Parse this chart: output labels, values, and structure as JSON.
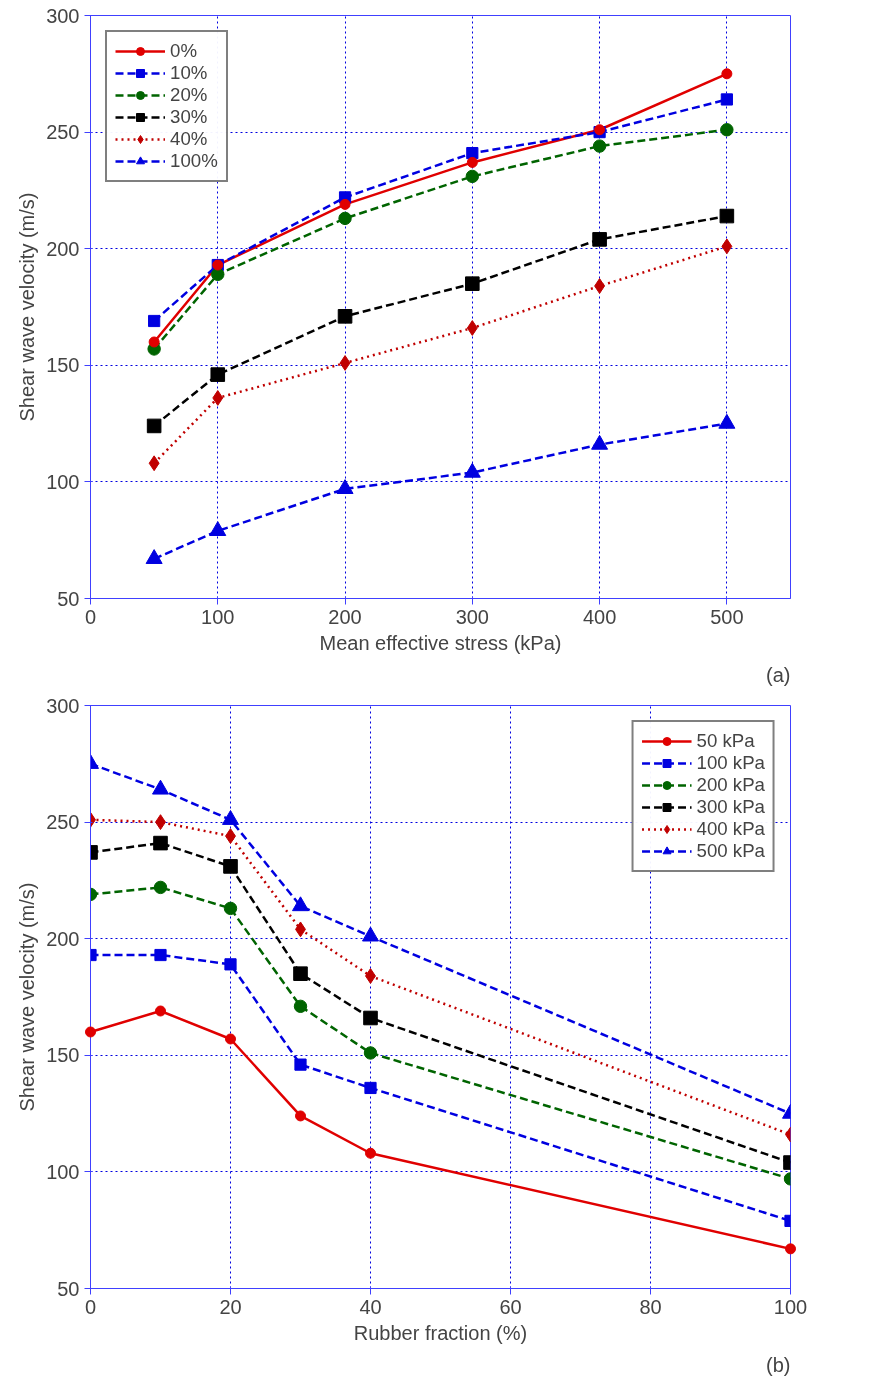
{
  "chart_data": [
    {
      "type": "line",
      "xlabel": "Mean effective stress (kPa)",
      "ylabel": "Shear wave velocity (m/s)",
      "annotations": [
        "(a)"
      ],
      "x": [
        50,
        100,
        200,
        300,
        400,
        500
      ],
      "xlim": [
        0,
        550
      ],
      "xticks": [
        0,
        100,
        200,
        300,
        400,
        500
      ],
      "ylim": [
        50,
        300
      ],
      "yticks": [
        50,
        100,
        150,
        200,
        250,
        300
      ],
      "grid": true,
      "legend": "top left",
      "series": [
        {
          "name": "0%",
          "color": "#e00000",
          "marker": "circle",
          "line_style": "solid",
          "values": [
            160,
            193,
            219,
            237,
            251,
            275
          ]
        },
        {
          "name": "10%",
          "color": "#0000e0",
          "marker": "square",
          "line_style": "dashed",
          "values": [
            169,
            193,
            222,
            241,
            250,
            264
          ]
        },
        {
          "name": "20%",
          "color": "#006400",
          "marker": "circle",
          "line_style": "dashed",
          "values": [
            157,
            189,
            213,
            231,
            244,
            251
          ]
        },
        {
          "name": "30%",
          "color": "#000000",
          "marker": "square",
          "line_style": "dashed",
          "values": [
            124,
            146,
            171,
            185,
            204,
            214
          ]
        },
        {
          "name": "40%",
          "color": "#c00000",
          "marker": "diamond",
          "line_style": "dotted",
          "values": [
            108,
            136,
            151,
            166,
            184,
            201
          ]
        },
        {
          "name": "100%",
          "color": "#0000e0",
          "marker": "triangle",
          "line_style": "dashed",
          "values": [
            67,
            79,
            97,
            104,
            116,
            125
          ]
        }
      ]
    },
    {
      "type": "line",
      "xlabel": "Rubber fraction (%)",
      "ylabel": "Shear wave velocity (m/s)",
      "annotations": [
        "(b)"
      ],
      "x": [
        0,
        10,
        20,
        30,
        40,
        100
      ],
      "xlim": [
        0,
        100
      ],
      "xticks": [
        0,
        20,
        40,
        60,
        80,
        100
      ],
      "ylim": [
        50,
        300
      ],
      "yticks": [
        50,
        100,
        150,
        200,
        250,
        300
      ],
      "grid": true,
      "legend": "top right",
      "series": [
        {
          "name": "50 kPa",
          "color": "#e00000",
          "marker": "circle",
          "line_style": "solid",
          "values": [
            160,
            169,
            157,
            124,
            108,
            67
          ]
        },
        {
          "name": "100 kPa",
          "color": "#0000e0",
          "marker": "square",
          "line_style": "dashed",
          "values": [
            193,
            193,
            189,
            146,
            136,
            79
          ]
        },
        {
          "name": "200 kPa",
          "color": "#006400",
          "marker": "circle",
          "line_style": "dashed",
          "values": [
            219,
            222,
            213,
            171,
            151,
            97
          ]
        },
        {
          "name": "300 kPa",
          "color": "#000000",
          "marker": "square",
          "line_style": "dashed",
          "values": [
            237,
            241,
            231,
            185,
            166,
            104
          ]
        },
        {
          "name": "400 kPa",
          "color": "#c00000",
          "marker": "diamond",
          "line_style": "dotted",
          "values": [
            251,
            250,
            244,
            204,
            184,
            116
          ]
        },
        {
          "name": "500 kPa",
          "color": "#0000e0",
          "marker": "triangle",
          "line_style": "dashed",
          "values": [
            275,
            264,
            251,
            214,
            201,
            125
          ]
        }
      ]
    }
  ]
}
